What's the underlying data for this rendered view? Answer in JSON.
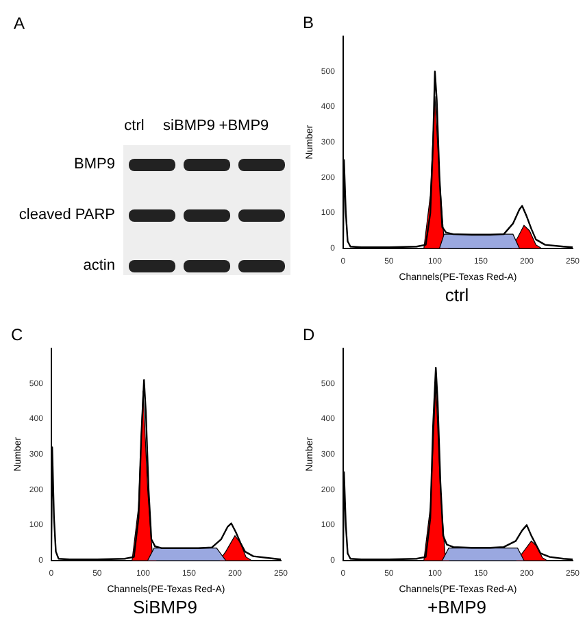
{
  "chart_data": [
    {
      "type": "other",
      "title": "A",
      "categories": [
        "ctrl",
        "siBMP9",
        "+BMP9"
      ],
      "y_categories": [
        "BMP9",
        "cleaved PARP",
        "actin"
      ]
    },
    {
      "type": "line",
      "title": "B",
      "xlabel": "Channels(PE-Texas Red-A)",
      "ylabel": "Number",
      "xlim": [
        0,
        250
      ],
      "xticks": [
        0,
        50,
        100,
        150,
        200,
        250
      ],
      "ylim": [
        0,
        600
      ],
      "yticks": [
        0,
        100,
        200,
        300,
        400,
        500
      ],
      "legend": false,
      "marker": "none",
      "annotations": [
        "ctrl"
      ],
      "series": [
        {
          "type": "area",
          "color": "#9aa8e0",
          "x": [
            105,
            110,
            185,
            192
          ],
          "values": [
            0,
            40,
            40,
            0
          ]
        },
        {
          "type": "area",
          "color": "#ff0000",
          "x": [
            88,
            95,
            100,
            105,
            110,
            115
          ],
          "values": [
            0,
            150,
            430,
            200,
            20,
            0
          ]
        },
        {
          "type": "area",
          "color": "#ff0000",
          "x": [
            183,
            190,
            197,
            203,
            210,
            216
          ],
          "values": [
            0,
            30,
            65,
            50,
            10,
            0
          ]
        },
        {
          "type": "line",
          "color": "#000000",
          "x": [
            0,
            1,
            3,
            5,
            8,
            20,
            50,
            80,
            90,
            95,
            98,
            100,
            102,
            105,
            108,
            112,
            120,
            140,
            160,
            175,
            185,
            192,
            195,
            200,
            205,
            210,
            220,
            240,
            250
          ],
          "values": [
            0,
            250,
            100,
            20,
            5,
            3,
            3,
            5,
            10,
            100,
            300,
            500,
            420,
            200,
            60,
            45,
            40,
            38,
            38,
            40,
            70,
            110,
            120,
            90,
            55,
            25,
            10,
            5,
            3
          ]
        }
      ]
    },
    {
      "type": "line",
      "title": "C",
      "xlabel": "Channels(PE-Texas Red-A)",
      "ylabel": "Number",
      "xlim": [
        0,
        250
      ],
      "xticks": [
        0,
        50,
        100,
        150,
        200,
        250
      ],
      "ylim": [
        0,
        600
      ],
      "yticks": [
        0,
        100,
        200,
        300,
        400,
        500
      ],
      "legend": false,
      "marker": "none",
      "annotations": [
        "SiBMP9"
      ],
      "series": [
        {
          "type": "area",
          "color": "#9aa8e0",
          "x": [
            105,
            112,
            180,
            190
          ],
          "values": [
            0,
            35,
            35,
            0
          ]
        },
        {
          "type": "area",
          "color": "#ff0000",
          "x": [
            88,
            95,
            100,
            105,
            110,
            115
          ],
          "values": [
            0,
            150,
            480,
            200,
            20,
            0
          ]
        },
        {
          "type": "area",
          "color": "#ff0000",
          "x": [
            183,
            190,
            200,
            206,
            212,
            218
          ],
          "values": [
            0,
            25,
            70,
            50,
            10,
            0
          ]
        },
        {
          "type": "line",
          "color": "#000000",
          "x": [
            0,
            1,
            3,
            5,
            8,
            20,
            50,
            80,
            90,
            95,
            98,
            101,
            103,
            106,
            109,
            113,
            120,
            140,
            160,
            175,
            185,
            192,
            196,
            201,
            206,
            211,
            220,
            240,
            250
          ],
          "values": [
            0,
            320,
            120,
            25,
            5,
            3,
            3,
            5,
            10,
            120,
            350,
            510,
            420,
            200,
            60,
            40,
            35,
            35,
            35,
            37,
            60,
            95,
            105,
            80,
            50,
            25,
            12,
            6,
            3
          ]
        }
      ]
    },
    {
      "type": "line",
      "title": "D",
      "xlabel": "Channels(PE-Texas Red-A)",
      "ylabel": "Number",
      "xlim": [
        0,
        250
      ],
      "xticks": [
        0,
        50,
        100,
        150,
        200,
        250
      ],
      "ylim": [
        0,
        600
      ],
      "yticks": [
        0,
        100,
        200,
        300,
        400,
        500
      ],
      "legend": false,
      "marker": "none",
      "annotations": [
        "+BMP9"
      ],
      "series": [
        {
          "type": "area",
          "color": "#9aa8e0",
          "x": [
            108,
            115,
            190,
            197
          ],
          "values": [
            0,
            35,
            35,
            0
          ]
        },
        {
          "type": "area",
          "color": "#ff0000",
          "x": [
            88,
            95,
            101,
            106,
            111,
            116
          ],
          "values": [
            0,
            150,
            500,
            200,
            20,
            0
          ]
        },
        {
          "type": "area",
          "color": "#ff0000",
          "x": [
            188,
            195,
            205,
            211,
            217,
            222
          ],
          "values": [
            0,
            20,
            55,
            40,
            8,
            0
          ]
        },
        {
          "type": "line",
          "color": "#000000",
          "x": [
            0,
            1,
            3,
            5,
            8,
            20,
            50,
            80,
            90,
            95,
            98,
            101,
            103,
            106,
            109,
            113,
            120,
            140,
            160,
            175,
            188,
            195,
            200,
            205,
            210,
            215,
            225,
            240,
            250
          ],
          "values": [
            0,
            250,
            100,
            20,
            5,
            3,
            3,
            5,
            10,
            120,
            380,
            545,
            450,
            220,
            70,
            45,
            38,
            36,
            36,
            38,
            55,
            85,
            100,
            70,
            45,
            20,
            10,
            5,
            3
          ]
        }
      ]
    }
  ]
}
